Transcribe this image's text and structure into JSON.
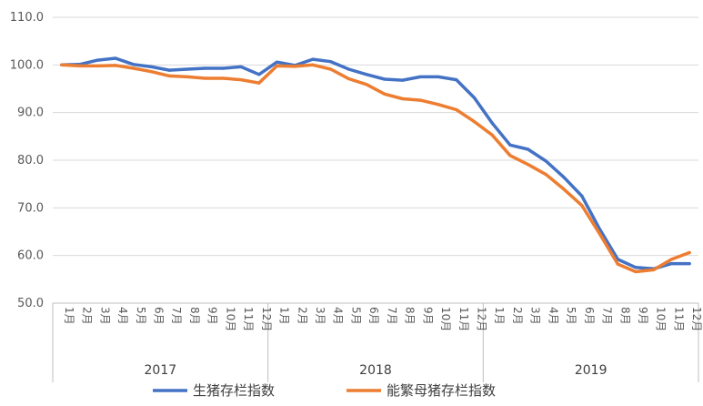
{
  "chart_data": {
    "type": "line",
    "title": "",
    "xlabel": "",
    "ylabel": "",
    "ylim": [
      50,
      110
    ],
    "yticks": [
      "50.0",
      "60.0",
      "70.0",
      "80.0",
      "90.0",
      "100.0",
      "110.0"
    ],
    "grid": "horizontal",
    "legend_position": "bottom",
    "years": [
      "2017",
      "2018",
      "2019"
    ],
    "months": [
      "1月",
      "2月",
      "3月",
      "4月",
      "5月",
      "6月",
      "7月",
      "8月",
      "9月",
      "10月",
      "11月",
      "12月"
    ],
    "series": [
      {
        "name": "生猪存栏指数",
        "color": "#4472C4",
        "values": [
          100.0,
          100.1,
          101.0,
          101.4,
          100.1,
          99.6,
          98.9,
          99.1,
          99.3,
          99.3,
          99.6,
          98.0,
          100.6,
          99.9,
          101.2,
          100.7,
          99.1,
          98.0,
          97.0,
          96.8,
          97.5,
          97.5,
          96.9,
          93.1,
          87.8,
          83.2,
          82.3,
          79.8,
          76.4,
          72.5,
          65.5,
          59.2,
          57.5,
          57.2,
          58.3,
          58.3
        ]
      },
      {
        "name": "能繁母猪存栏指数",
        "color": "#ED7D31",
        "values": [
          100.0,
          99.8,
          99.8,
          99.9,
          99.3,
          98.6,
          97.7,
          97.5,
          97.2,
          97.2,
          96.9,
          96.2,
          99.8,
          99.7,
          100.0,
          99.1,
          97.1,
          95.9,
          93.9,
          92.9,
          92.6,
          91.7,
          90.6,
          88.1,
          85.3,
          81.0,
          79.1,
          77.0,
          73.9,
          70.5,
          64.5,
          58.2,
          56.6,
          57.0,
          59.2,
          60.6
        ]
      }
    ]
  }
}
